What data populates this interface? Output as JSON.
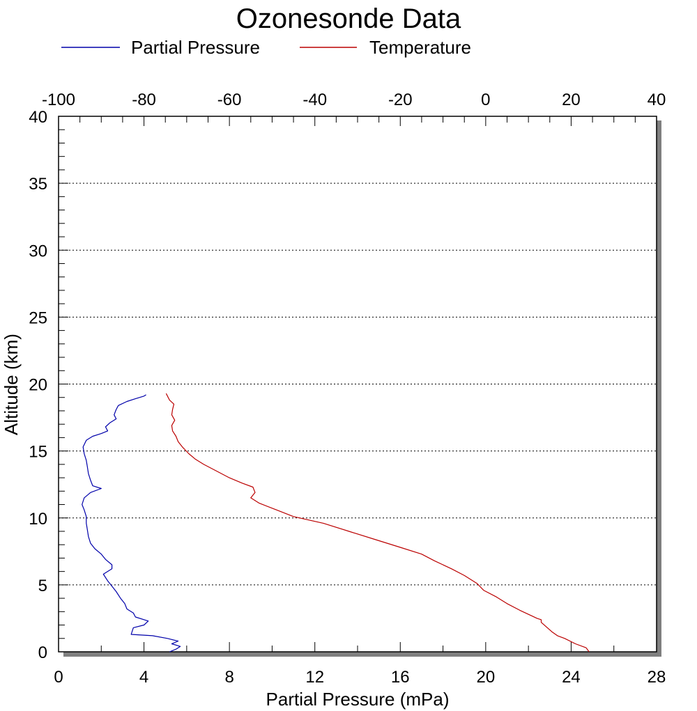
{
  "chart_data": {
    "type": "line",
    "title": "Ozonesonde Data",
    "xlabel": "Partial Pressure (mPa)",
    "ylabel": "Altitude (km)",
    "xlim": [
      0,
      28
    ],
    "ylim": [
      0,
      40
    ],
    "x2lim": [
      -100,
      40
    ],
    "x_ticks": [
      "0",
      "4",
      "8",
      "12",
      "16",
      "20",
      "24",
      "28"
    ],
    "y_ticks": [
      "0",
      "5",
      "10",
      "15",
      "20",
      "25",
      "30",
      "35",
      "40"
    ],
    "x2_ticks": [
      "-100",
      "-80",
      "-60",
      "-40",
      "-20",
      "0",
      "20",
      "40"
    ],
    "grid": "horizontal-dotted",
    "legend_position": "top",
    "series": [
      {
        "name": "Partial Pressure",
        "color": "#0000aa",
        "axis": "bottom",
        "points": [
          [
            5.2,
            0.0
          ],
          [
            5.5,
            0.2
          ],
          [
            5.7,
            0.4
          ],
          [
            5.3,
            0.6
          ],
          [
            5.6,
            0.8
          ],
          [
            5.1,
            1.0
          ],
          [
            4.4,
            1.2
          ],
          [
            3.4,
            1.3
          ],
          [
            3.5,
            1.8
          ],
          [
            4.0,
            2.0
          ],
          [
            4.2,
            2.3
          ],
          [
            3.6,
            2.6
          ],
          [
            3.5,
            2.9
          ],
          [
            3.2,
            3.2
          ],
          [
            3.1,
            3.6
          ],
          [
            2.9,
            4.0
          ],
          [
            2.7,
            4.5
          ],
          [
            2.5,
            4.9
          ],
          [
            2.3,
            5.3
          ],
          [
            2.1,
            5.8
          ],
          [
            2.5,
            6.2
          ],
          [
            2.5,
            6.5
          ],
          [
            2.2,
            6.9
          ],
          [
            2.0,
            7.3
          ],
          [
            1.7,
            7.7
          ],
          [
            1.5,
            8.1
          ],
          [
            1.4,
            8.6
          ],
          [
            1.35,
            9.1
          ],
          [
            1.3,
            9.6
          ],
          [
            1.3,
            10.1
          ],
          [
            1.2,
            10.6
          ],
          [
            1.1,
            11.0
          ],
          [
            1.2,
            11.5
          ],
          [
            1.5,
            11.9
          ],
          [
            2.0,
            12.2
          ],
          [
            1.6,
            12.4
          ],
          [
            1.5,
            12.8
          ],
          [
            1.4,
            13.3
          ],
          [
            1.35,
            13.8
          ],
          [
            1.3,
            14.3
          ],
          [
            1.2,
            14.8
          ],
          [
            1.15,
            15.3
          ],
          [
            1.3,
            15.8
          ],
          [
            1.6,
            16.1
          ],
          [
            2.0,
            16.3
          ],
          [
            2.3,
            16.5
          ],
          [
            2.2,
            16.8
          ],
          [
            2.4,
            17.1
          ],
          [
            2.7,
            17.4
          ],
          [
            2.6,
            17.7
          ],
          [
            2.7,
            18.1
          ],
          [
            2.8,
            18.4
          ],
          [
            3.2,
            18.7
          ],
          [
            3.6,
            18.9
          ],
          [
            4.0,
            19.1
          ],
          [
            4.1,
            19.2
          ]
        ]
      },
      {
        "name": "Temperature",
        "color": "#bb0000",
        "axis": "top",
        "points": [
          [
            24.2,
            0.0
          ],
          [
            23.5,
            0.3
          ],
          [
            21.0,
            0.6
          ],
          [
            18.5,
            1.0
          ],
          [
            16.8,
            1.2
          ],
          [
            15.5,
            1.5
          ],
          [
            13.0,
            2.2
          ],
          [
            13.0,
            2.4
          ],
          [
            12.0,
            2.5
          ],
          [
            8.0,
            3.1
          ],
          [
            5.0,
            3.6
          ],
          [
            2.5,
            4.1
          ],
          [
            -0.5,
            4.6
          ],
          [
            -2.0,
            5.1
          ],
          [
            -5.0,
            5.7
          ],
          [
            -8.0,
            6.2
          ],
          [
            -12.0,
            6.8
          ],
          [
            -15.0,
            7.3
          ],
          [
            -20.0,
            7.8
          ],
          [
            -26.0,
            8.4
          ],
          [
            -32.0,
            9.0
          ],
          [
            -38.0,
            9.6
          ],
          [
            -45.0,
            10.1
          ],
          [
            -49.0,
            10.6
          ],
          [
            -53.0,
            11.1
          ],
          [
            -55.0,
            11.5
          ],
          [
            -54.0,
            11.9
          ],
          [
            -54.5,
            12.3
          ],
          [
            -57.0,
            12.6
          ],
          [
            -60.0,
            13.0
          ],
          [
            -63.0,
            13.5
          ],
          [
            -66.0,
            14.0
          ],
          [
            -68.0,
            14.4
          ],
          [
            -69.5,
            14.8
          ],
          [
            -71.0,
            15.3
          ],
          [
            -72.0,
            15.7
          ],
          [
            -72.5,
            16.1
          ],
          [
            -73.3,
            16.5
          ],
          [
            -73.5,
            16.9
          ],
          [
            -72.8,
            17.3
          ],
          [
            -73.5,
            17.7
          ],
          [
            -73.3,
            18.1
          ],
          [
            -73.0,
            18.5
          ],
          [
            -74.0,
            18.8
          ],
          [
            -74.5,
            19.1
          ],
          [
            -74.8,
            19.3
          ]
        ]
      }
    ]
  }
}
